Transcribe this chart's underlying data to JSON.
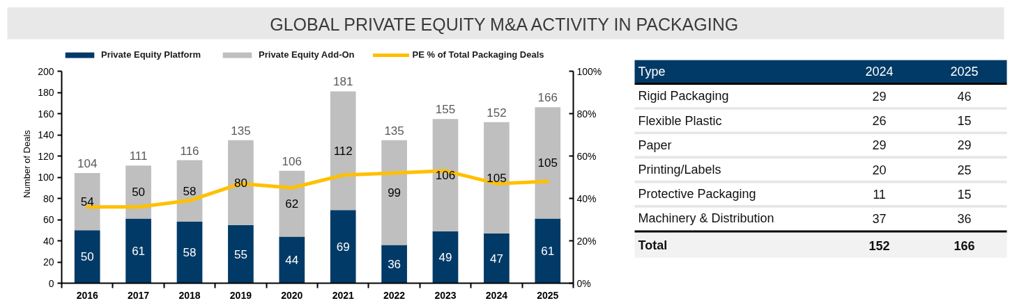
{
  "chart_data": [
    {
      "type": "bar",
      "title": "GLOBAL PRIVATE EQUITY M&A ACTIVITY IN PACKAGING",
      "ylabel": "Number of Deals",
      "categories": [
        "2016",
        "2017",
        "2018",
        "2019",
        "2020",
        "2021",
        "2022",
        "2023",
        "2024",
        "2025"
      ],
      "stacked": true,
      "series": [
        {
          "name": "Private Equity Platform",
          "color": "#023a67",
          "values": [
            50,
            61,
            58,
            55,
            44,
            69,
            36,
            49,
            47,
            61
          ],
          "value_labels": [
            "50",
            "61",
            "58",
            "55",
            "44",
            "69",
            "36",
            "49",
            "47",
            "61"
          ]
        },
        {
          "name": "Private Equity Add-On",
          "color": "#bfbfbf",
          "values": [
            54,
            50,
            58,
            80,
            62,
            112,
            99,
            106,
            105,
            105
          ],
          "value_labels": [
            "54",
            "50",
            "58",
            "80",
            "62",
            "112",
            "99",
            "106",
            "105",
            "105"
          ]
        },
        {
          "name": "PE % of Total Packaging Deals",
          "type": "line",
          "axis": "y2",
          "color": "#ffc000",
          "values": [
            36,
            36,
            39,
            47,
            45,
            51,
            52,
            53,
            47,
            48
          ]
        }
      ],
      "totals": [
        "104",
        "111",
        "116",
        "135",
        "106",
        "181",
        "135",
        "155",
        "152",
        "166"
      ],
      "ylim": [
        0,
        200
      ],
      "yticks": [
        0,
        20,
        40,
        60,
        80,
        100,
        120,
        140,
        160,
        180,
        200
      ],
      "y2lim": [
        0,
        100
      ],
      "y2ticks": [
        {
          "value": 0,
          "label": "0%"
        },
        {
          "value": 20,
          "label": "20%"
        },
        {
          "value": 40,
          "label": "40%"
        },
        {
          "value": 60,
          "label": "60%"
        },
        {
          "value": 80,
          "label": "80%"
        },
        {
          "value": 100,
          "label": "100%"
        }
      ],
      "legend": "top",
      "grid": false
    },
    {
      "type": "other",
      "ylabel": "Type",
      "categories": [
        "Rigid Packaging",
        "Flexible Plastic",
        "Paper",
        "Printing/Labels",
        "Protective Packaging",
        "Machinery & Distribution",
        "Total"
      ],
      "series": [
        {
          "name": "2024",
          "values": [
            29,
            26,
            29,
            20,
            11,
            37,
            152
          ]
        },
        {
          "name": "2025",
          "values": [
            46,
            15,
            29,
            25,
            15,
            36,
            166
          ]
        }
      ],
      "data_labels": true
    }
  ]
}
